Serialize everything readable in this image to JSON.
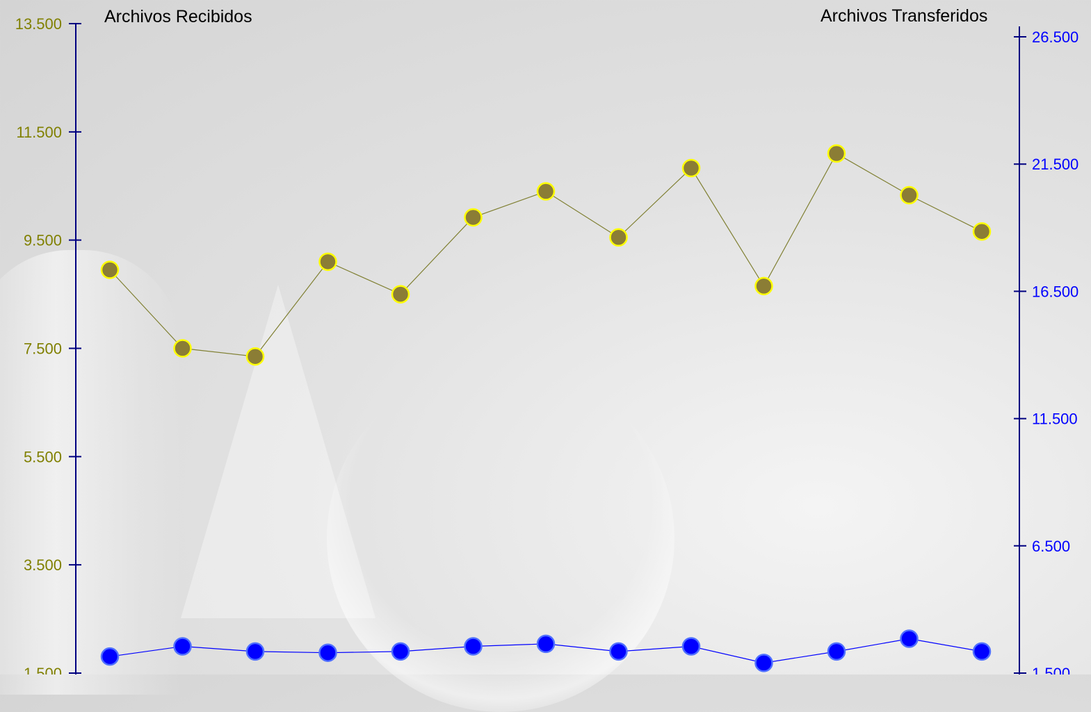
{
  "chart_data": {
    "type": "line",
    "left_axis_title": "Archivos Recibidos",
    "right_axis_title": "Archivos Transferidos",
    "left_axis": {
      "ticks": [
        "13.500",
        "11.500",
        "9.500",
        "7.500",
        "5.500",
        "3.500",
        "1.500"
      ],
      "range": [
        1500,
        13500
      ],
      "color": "#808000"
    },
    "right_axis": {
      "ticks": [
        "26.500",
        "21.500",
        "16.500",
        "11.500",
        "6.500",
        "1.500"
      ],
      "range": [
        1500,
        26500
      ],
      "color": "#0000ff"
    },
    "x": [
      1,
      2,
      3,
      4,
      5,
      6,
      7,
      8,
      9,
      10,
      11,
      12,
      13
    ],
    "series": [
      {
        "axis": "left",
        "values": [
          8950,
          7500,
          7350,
          9100,
          8500,
          9920,
          10400,
          9550,
          10830,
          8650,
          11100,
          10330,
          9660
        ],
        "marker_fill": "#8b7d35",
        "marker_stroke": "#ffff00",
        "line_color": "#808033"
      },
      {
        "axis": "right",
        "values": [
          2150,
          2550,
          2350,
          2300,
          2350,
          2550,
          2650,
          2350,
          2550,
          1900,
          2350,
          2850,
          2350
        ],
        "marker_fill": "#0000ff",
        "marker_stroke": "#4f6fff",
        "line_color": "#0000ff"
      }
    ],
    "grid": false,
    "legend": "none"
  }
}
